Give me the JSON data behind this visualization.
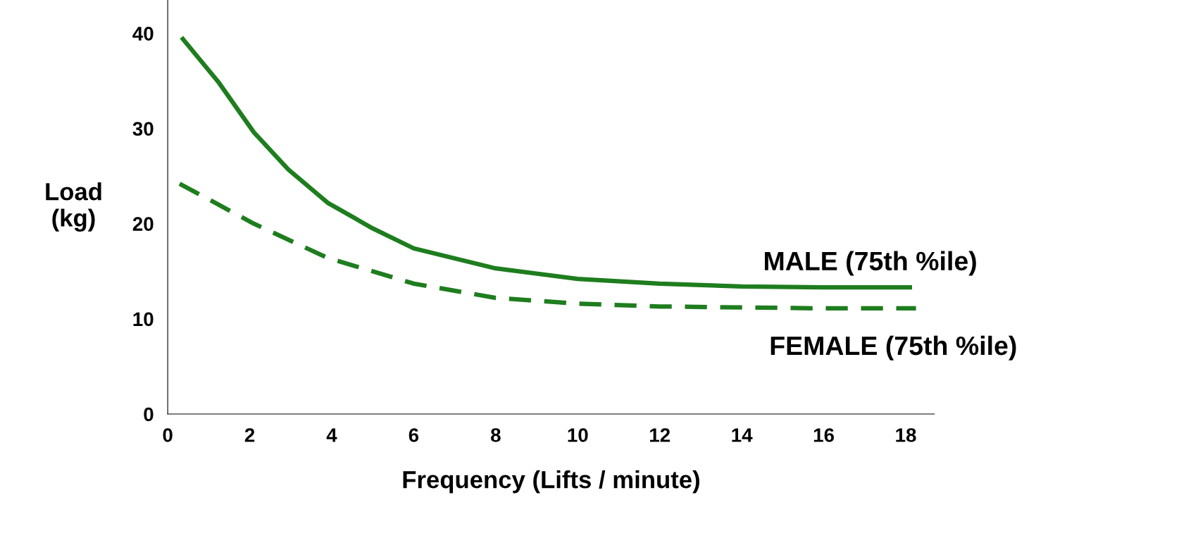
{
  "chart_data": {
    "type": "line",
    "xlabel": "Frequency (Lifts / minute)",
    "ylabel": "Load\n(kg)",
    "xlim": [
      0,
      18.7
    ],
    "ylim": [
      0,
      43.5
    ],
    "xticks": [
      0,
      2,
      4,
      6,
      8,
      10,
      12,
      14,
      16,
      18
    ],
    "yticks": [
      0,
      10,
      20,
      30,
      40
    ],
    "grid": false,
    "legend": false,
    "marker": "none",
    "series": [
      {
        "name": "MALE (75th %ile)",
        "color": "#1e7d1e",
        "line_style": "solid",
        "x": [
          0.37,
          1.25,
          2.1,
          2.94,
          3.9,
          5.0,
          6,
          8,
          10,
          12,
          14,
          16,
          18.1
        ],
        "values": [
          39.4,
          34.8,
          29.6,
          25.7,
          22.2,
          19.5,
          17.4,
          15.3,
          14.2,
          13.7,
          13.4,
          13.3,
          13.3
        ]
      },
      {
        "name": "FEMALE (75th %ile)",
        "color": "#1e7d1e",
        "line_style": "dashed",
        "x": [
          0.29,
          2.1,
          3.9,
          6,
          8,
          10,
          12,
          14,
          16,
          18.25
        ],
        "values": [
          24.2,
          20.0,
          16.4,
          13.7,
          12.2,
          11.6,
          11.3,
          11.2,
          11.1,
          11.1
        ]
      }
    ]
  }
}
